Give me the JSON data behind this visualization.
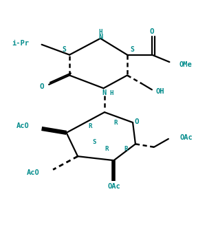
{
  "bg_color": "#ffffff",
  "figsize": [
    3.01,
    3.59
  ],
  "dpi": 100,
  "line_color": "#000000",
  "tc": "#008B8B",
  "lw": 1.6,
  "xlim": [
    0,
    10
  ],
  "ylim": [
    0,
    12
  ]
}
